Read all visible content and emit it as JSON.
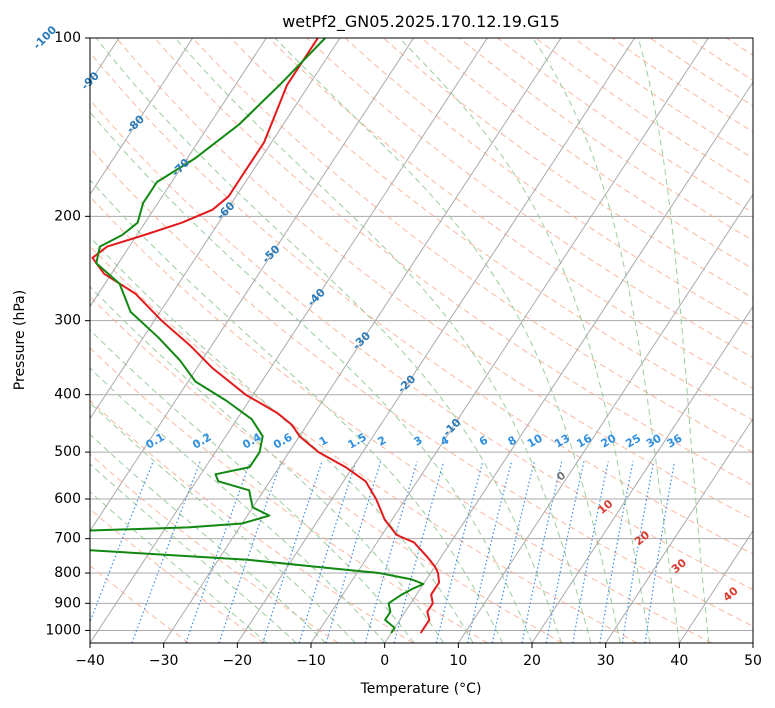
{
  "chart_data": {
    "type": "line",
    "title": "wetPf2_GN05.2025.170.12.19.G15",
    "xlabel": "Temperature (°C)",
    "ylabel": "Pressure (hPa)",
    "xlim": [
      -40,
      50
    ],
    "ylim": [
      1050,
      100
    ],
    "y_scale": "log",
    "skew": true,
    "grid": true,
    "x_ticks": [
      "−40",
      "−30",
      "−20",
      "−10",
      "0",
      "10",
      "20",
      "30",
      "40",
      "50"
    ],
    "y_ticks": [
      "100",
      "200",
      "300",
      "400",
      "500",
      "600",
      "700",
      "800",
      "900",
      "1000"
    ],
    "y_tick_values": [
      100,
      200,
      300,
      400,
      500,
      600,
      700,
      800,
      900,
      1000
    ],
    "colors": {
      "temperature": "#e31a1c",
      "dewpoint": "#118811",
      "isotherm": "#aaaaaa",
      "dry_adiabat": "#f7a68a",
      "moist_adiabat": "#9dcc9d",
      "mixing_ratio": "#3a8ee6",
      "isobar": "#aaaaaa"
    },
    "series": [
      {
        "points": [
          [
            100,
            -63
          ],
          [
            120,
            -63
          ],
          [
            150,
            -61
          ],
          [
            170,
            -61
          ],
          [
            185,
            -61
          ],
          [
            195,
            -62
          ],
          [
            205,
            -65
          ],
          [
            215,
            -69
          ],
          [
            225,
            -73
          ],
          [
            235,
            -74
          ],
          [
            250,
            -71
          ],
          [
            270,
            -65
          ],
          [
            300,
            -59
          ],
          [
            330,
            -53
          ],
          [
            360,
            -48
          ],
          [
            400,
            -41
          ],
          [
            430,
            -35
          ],
          [
            450,
            -32
          ],
          [
            470,
            -30
          ],
          [
            500,
            -26
          ],
          [
            530,
            -21
          ],
          [
            560,
            -17
          ],
          [
            600,
            -14
          ],
          [
            650,
            -11
          ],
          [
            690,
            -8
          ],
          [
            710,
            -5
          ],
          [
            750,
            -2
          ],
          [
            780,
            0
          ],
          [
            800,
            1
          ],
          [
            830,
            2
          ],
          [
            850,
            2
          ],
          [
            870,
            2
          ],
          [
            900,
            3
          ],
          [
            930,
            3
          ],
          [
            960,
            4
          ],
          [
            1000,
            4
          ],
          [
            1010,
            4
          ]
        ]
      },
      {
        "points": [
          [
            100,
            -62
          ],
          [
            120,
            -64
          ],
          [
            140,
            -66
          ],
          [
            160,
            -69
          ],
          [
            175,
            -72
          ],
          [
            190,
            -72
          ],
          [
            205,
            -71
          ],
          [
            215,
            -72
          ],
          [
            225,
            -74
          ],
          [
            240,
            -73
          ],
          [
            260,
            -68
          ],
          [
            290,
            -64
          ],
          [
            320,
            -58
          ],
          [
            350,
            -53
          ],
          [
            380,
            -49
          ],
          [
            410,
            -43
          ],
          [
            440,
            -38
          ],
          [
            470,
            -35
          ],
          [
            500,
            -34
          ],
          [
            530,
            -34
          ],
          [
            545,
            -38
          ],
          [
            560,
            -37
          ],
          [
            580,
            -32
          ],
          [
            600,
            -31
          ],
          [
            620,
            -30
          ],
          [
            640,
            -27
          ],
          [
            660,
            -30
          ],
          [
            670,
            -37
          ],
          [
            685,
            -61
          ],
          [
            700,
            -95
          ],
          [
            720,
            -79
          ],
          [
            730,
            -50
          ],
          [
            760,
            -26
          ],
          [
            785,
            -14
          ],
          [
            800,
            -7
          ],
          [
            820,
            -2
          ],
          [
            835,
            0
          ],
          [
            850,
            -1
          ],
          [
            870,
            -2
          ],
          [
            900,
            -3
          ],
          [
            930,
            -2
          ],
          [
            960,
            -2
          ],
          [
            990,
            0
          ],
          [
            1010,
            0
          ]
        ]
      }
    ],
    "isotherm_labels": [
      "-100",
      "-90",
      "-80",
      "-70",
      "-60",
      "-50",
      "-40",
      "-30",
      "-20",
      "-10"
    ],
    "mixing_ratio_labels": [
      "0.1",
      "0.2",
      "0.4",
      "0.6",
      "1",
      "1.5",
      "2",
      "3",
      "4",
      "6",
      "8",
      "10",
      "13",
      "16",
      "20",
      "25",
      "30",
      "36"
    ],
    "mixing_ratio_values": [
      0.1,
      0.2,
      0.4,
      0.6,
      1,
      1.5,
      2,
      3,
      4,
      6,
      8,
      10,
      13,
      16,
      20,
      25,
      30,
      36
    ],
    "moist_adiabat_labels": [
      "0",
      "10",
      "20",
      "30",
      "40"
    ]
  }
}
